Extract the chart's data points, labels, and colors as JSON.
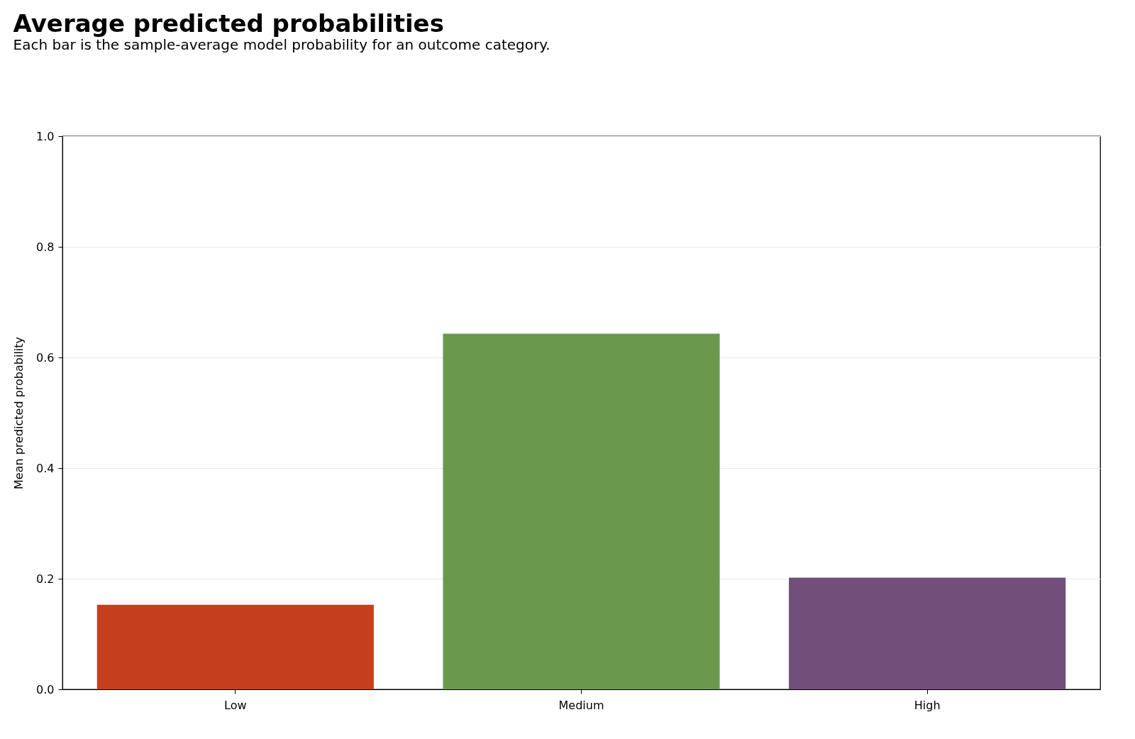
{
  "chart_data": {
    "type": "bar",
    "title": "Average predicted probabilities",
    "subtitle": "Each bar is the sample-average model probability for an outcome category.",
    "ylabel": "Mean predicted probability",
    "categories": [
      "Low",
      "Medium",
      "High"
    ],
    "values": [
      0.153,
      0.643,
      0.202
    ],
    "colors": [
      "#c53f1f",
      "#6a994e",
      "#714f7a"
    ],
    "ylim": [
      0,
      1
    ],
    "yticks": [
      {
        "value": 0,
        "label": "0.0"
      },
      {
        "value": 0.2,
        "label": "0.2"
      },
      {
        "value": 0.4,
        "label": "0.4"
      },
      {
        "value": 0.6,
        "label": "0.6"
      },
      {
        "value": 0.8,
        "label": "0.8"
      },
      {
        "value": 1,
        "label": "1.0"
      }
    ],
    "grid": "y"
  }
}
